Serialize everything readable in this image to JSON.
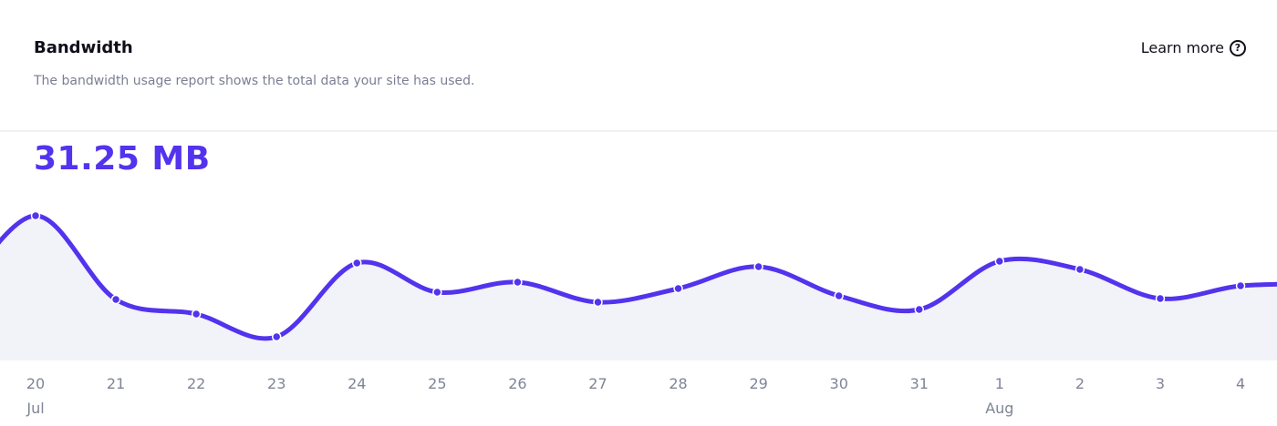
{
  "header": {
    "title": "Bandwidth",
    "description": "The bandwidth usage report shows the total data your site has used.",
    "learn_more": "Learn more",
    "learn_more_icon": "question-circle-icon"
  },
  "total": "31.25 MB",
  "colors": {
    "accent": "#5333ed",
    "fill": "#f1f3f9",
    "tick": "#7f8497"
  },
  "chart_data": {
    "type": "area",
    "title": "Bandwidth",
    "xlabel": "",
    "ylabel": "",
    "categories": [
      "20",
      "21",
      "22",
      "23",
      "24",
      "25",
      "26",
      "27",
      "28",
      "29",
      "30",
      "31",
      "1",
      "2",
      "3",
      "4"
    ],
    "month_labels": [
      {
        "index": 0,
        "label": "Jul"
      },
      {
        "index": 12,
        "label": "Aug"
      }
    ],
    "values": [
      159,
      67,
      51,
      26,
      107,
      75,
      86,
      64,
      79,
      103,
      71,
      56,
      109,
      100,
      68,
      82
    ],
    "value_before": 66,
    "value_after": 84,
    "note": "relative values (no y-axis shown)",
    "ylim": [
      0,
      170
    ],
    "grid": false
  }
}
